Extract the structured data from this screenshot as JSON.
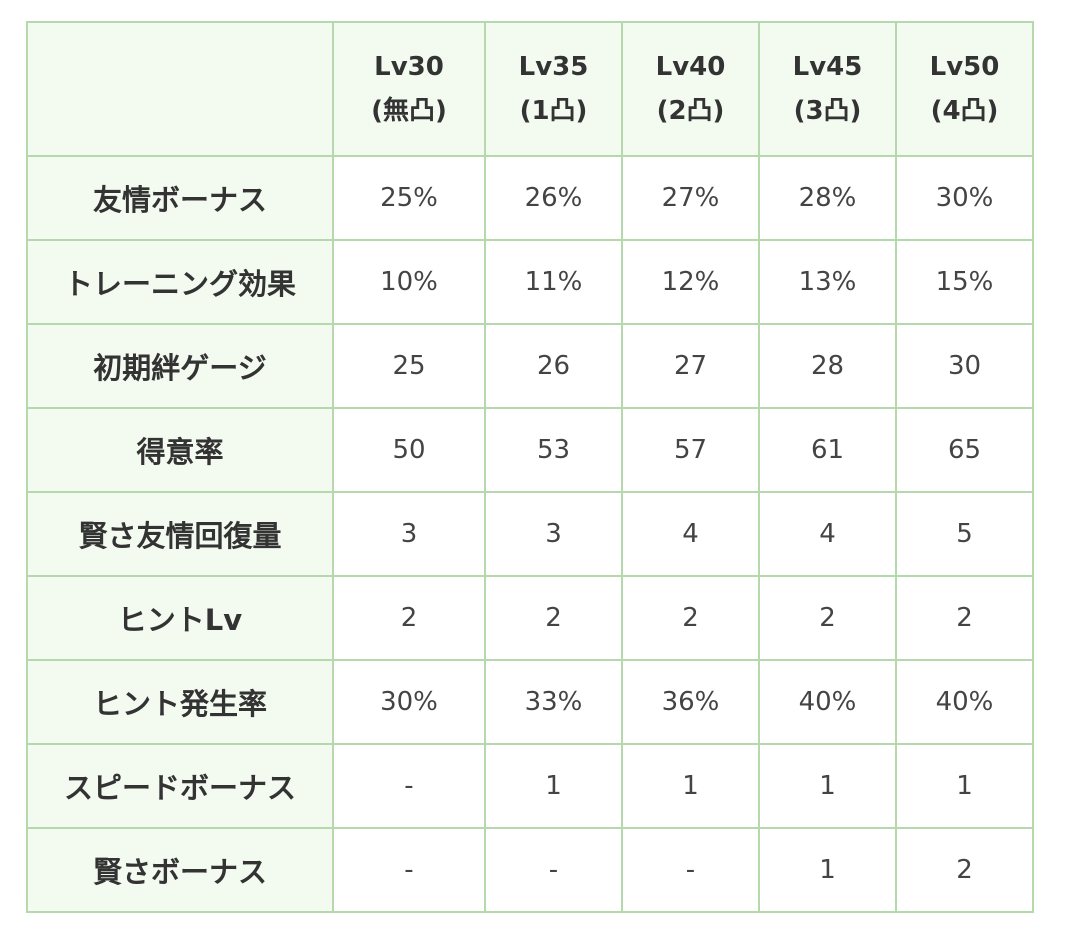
{
  "table": {
    "columns": [
      {
        "level": "Lv30",
        "breakthrough": "(無凸)"
      },
      {
        "level": "Lv35",
        "breakthrough": "(1凸)"
      },
      {
        "level": "Lv40",
        "breakthrough": "(2凸)"
      },
      {
        "level": "Lv45",
        "breakthrough": "(3凸)"
      },
      {
        "level": "Lv50",
        "breakthrough": "(4凸)"
      }
    ],
    "rows": [
      {
        "label": "友情ボーナス",
        "values": [
          "25%",
          "26%",
          "27%",
          "28%",
          "30%"
        ]
      },
      {
        "label": "トレーニング効果",
        "values": [
          "10%",
          "11%",
          "12%",
          "13%",
          "15%"
        ]
      },
      {
        "label": "初期絆ゲージ",
        "values": [
          "25",
          "26",
          "27",
          "28",
          "30"
        ]
      },
      {
        "label": "得意率",
        "values": [
          "50",
          "53",
          "57",
          "61",
          "65"
        ]
      },
      {
        "label": "賢さ友情回復量",
        "values": [
          "3",
          "3",
          "4",
          "4",
          "5"
        ]
      },
      {
        "label": "ヒントLv",
        "values": [
          "2",
          "2",
          "2",
          "2",
          "2"
        ]
      },
      {
        "label": "ヒント発生率",
        "values": [
          "30%",
          "33%",
          "36%",
          "40%",
          "40%"
        ]
      },
      {
        "label": "スピードボーナス",
        "values": [
          "-",
          "1",
          "1",
          "1",
          "1"
        ]
      },
      {
        "label": "賢さボーナス",
        "values": [
          "-",
          "-",
          "-",
          "1",
          "2"
        ]
      }
    ]
  },
  "colors": {
    "border": "#b5d9ad",
    "header_background": "#f3fbf1",
    "cell_background": "#ffffff",
    "text": "#333333"
  }
}
